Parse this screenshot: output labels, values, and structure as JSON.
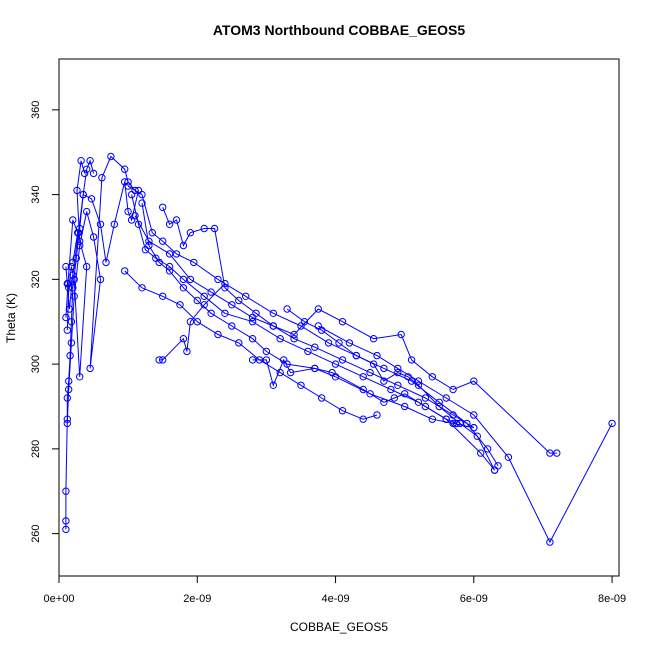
{
  "chart_data": {
    "type": "line",
    "title": "ATOM3 Northbound COBBAE_GEOS5",
    "xlabel": "COBBAE_GEOS5",
    "ylabel": "Theta (K)",
    "xlim": [
      0,
      8.1e-09
    ],
    "ylim": [
      250,
      372
    ],
    "x_ticks": [
      {
        "value": 0,
        "label": "0e+00"
      },
      {
        "value": 2e-09,
        "label": "2e-09"
      },
      {
        "value": 4e-09,
        "label": "4e-09"
      },
      {
        "value": 6e-09,
        "label": "6e-09"
      },
      {
        "value": 8e-09,
        "label": "8e-09"
      }
    ],
    "y_ticks": [
      {
        "value": 260,
        "label": "260"
      },
      {
        "value": 280,
        "label": "280"
      },
      {
        "value": 300,
        "label": "300"
      },
      {
        "value": 320,
        "label": "320"
      },
      {
        "value": 340,
        "label": "340"
      },
      {
        "value": 360,
        "label": "360"
      }
    ],
    "grid": false,
    "series": [
      {
        "color": "#0000ff",
        "marker": "open-circle",
        "segments": [
          [
            [
              1e-10,
              261
            ],
            [
              1e-10,
              263
            ],
            [
              1e-10,
              270
            ],
            [
              1.2e-10,
              287
            ],
            [
              1.2e-10,
              292
            ],
            [
              1.4e-10,
              296
            ],
            [
              1.6e-10,
              302
            ],
            [
              1.8e-10,
              310
            ],
            [
              2e-10,
              318
            ],
            [
              2.5e-10,
              325
            ],
            [
              3e-10,
              332
            ],
            [
              3.5e-10,
              340
            ],
            [
              4e-10,
              346
            ],
            [
              4.5e-10,
              348
            ],
            [
              5e-10,
              345
            ]
          ],
          [
            [
              1.2e-10,
              286
            ],
            [
              1.4e-10,
              294
            ],
            [
              1.8e-10,
              305
            ],
            [
              2.2e-10,
              316
            ],
            [
              3e-10,
              328
            ],
            [
              4e-10,
              336
            ],
            [
              5e-10,
              330
            ],
            [
              6e-10,
              320
            ],
            [
              4.5e-10,
              299
            ],
            [
              6.2e-10,
              344
            ],
            [
              7.5e-10,
              349
            ],
            [
              9.5e-10,
              346
            ],
            [
              1e-09,
              343
            ],
            [
              1.1e-09,
              341
            ]
          ],
          [
            [
              1e-10,
              323
            ],
            [
              1.2e-10,
              319
            ],
            [
              1.5e-10,
              313
            ],
            [
              2e-10,
              321
            ],
            [
              2.8e-10,
              331
            ],
            [
              3.5e-10,
              340
            ],
            [
              4.7e-10,
              339
            ],
            [
              6e-10,
              333
            ],
            [
              6.8e-10,
              324
            ],
            [
              8e-10,
              333
            ],
            [
              9.5e-10,
              343
            ],
            [
              1e-09,
              336
            ],
            [
              1.05e-09,
              334
            ],
            [
              1.15e-09,
              341
            ]
          ],
          [
            [
              1.2e-10,
              308
            ],
            [
              1.4e-10,
              318
            ],
            [
              1.8e-10,
              323
            ],
            [
              2.2e-10,
              320
            ],
            [
              3e-10,
              297
            ],
            [
              4e-10,
              323
            ],
            [
              3e-10,
              329
            ],
            [
              2.6e-10,
              341
            ],
            [
              3.2e-10,
              348
            ],
            [
              3.7e-10,
              345
            ]
          ],
          [
            [
              1e-10,
              311
            ],
            [
              1.3e-10,
              319
            ],
            [
              2e-10,
              334
            ],
            [
              2.7e-10,
              331
            ],
            [
              2e-10,
              324
            ]
          ],
          [
            [
              1.2e-09,
              338
            ],
            [
              1.3e-09,
              328
            ],
            [
              1.45e-09,
              324
            ],
            [
              1.6e-09,
              322
            ],
            [
              1.8e-09,
              318
            ],
            [
              2e-09,
              315
            ],
            [
              2.2e-09,
              312
            ],
            [
              2.5e-09,
              309
            ],
            [
              2.8e-09,
              306
            ],
            [
              3e-09,
              303
            ],
            [
              3.3e-09,
              300
            ],
            [
              3.7e-09,
              299
            ],
            [
              4e-09,
              297
            ],
            [
              4.5e-09,
              293
            ],
            [
              5e-09,
              290
            ],
            [
              5.4e-09,
              287
            ],
            [
              5.7e-09,
              286
            ],
            [
              6e-09,
              285
            ]
          ],
          [
            [
              1.05e-09,
              340
            ],
            [
              1.15e-09,
              333
            ],
            [
              1.25e-09,
              327
            ],
            [
              1.4e-09,
              325
            ],
            [
              1.6e-09,
              323
            ],
            [
              1.8e-09,
              320
            ],
            [
              2.1e-09,
              316
            ],
            [
              2.4e-09,
              312
            ],
            [
              2.8e-09,
              310
            ],
            [
              3.2e-09,
              306
            ],
            [
              3.6e-09,
              303
            ],
            [
              4e-09,
              300
            ],
            [
              4.4e-09,
              297
            ],
            [
              4.8e-09,
              294
            ],
            [
              5.2e-09,
              291
            ],
            [
              5.6e-09,
              287
            ],
            [
              6.1e-09,
              279
            ],
            [
              6.3e-09,
              275
            ]
          ],
          [
            [
              9.5e-10,
              322
            ],
            [
              1.2e-09,
              318
            ],
            [
              1.5e-09,
              316
            ],
            [
              1.75e-09,
              314
            ],
            [
              2e-09,
              310
            ],
            [
              2.3e-09,
              307
            ],
            [
              2.6e-09,
              305
            ],
            [
              2.9e-09,
              301
            ],
            [
              3.2e-09,
              298
            ],
            [
              3.5e-09,
              295
            ],
            [
              3.8e-09,
              292
            ],
            [
              4.1e-09,
              289
            ],
            [
              4.4e-09,
              287
            ],
            [
              4.6e-09,
              288
            ]
          ],
          [
            [
              1.1e-09,
              335
            ],
            [
              1.3e-09,
              329
            ],
            [
              1.6e-09,
              326
            ],
            [
              1.9e-09,
              320
            ],
            [
              2.2e-09,
              317
            ],
            [
              2.5e-09,
              314
            ],
            [
              2.8e-09,
              311
            ],
            [
              3.1e-09,
              309
            ],
            [
              3.4e-09,
              306
            ],
            [
              3.7e-09,
              304
            ],
            [
              4.1e-09,
              301
            ],
            [
              4.5e-09,
              298
            ],
            [
              4.9e-09,
              295
            ],
            [
              5.3e-09,
              292
            ],
            [
              5.7e-09,
              288
            ],
            [
              6e-09,
              285
            ]
          ],
          [
            [
              1e-09,
              342
            ],
            [
              1.2e-09,
              340
            ],
            [
              1.35e-09,
              331
            ],
            [
              1.5e-09,
              329
            ],
            [
              1.7e-09,
              326
            ],
            [
              1.95e-09,
              324
            ],
            [
              2.3e-09,
              320
            ],
            [
              2.7e-09,
              316
            ],
            [
              3.1e-09,
              312
            ],
            [
              3.5e-09,
              309
            ],
            [
              3.9e-09,
              305
            ],
            [
              4.3e-09,
              302
            ],
            [
              4.7e-09,
              299
            ],
            [
              5.1e-09,
              296
            ],
            [
              5.5e-09,
              291
            ],
            [
              5.9e-09,
              286
            ],
            [
              6.2e-09,
              280
            ],
            [
              6.35e-09,
              276
            ]
          ],
          [
            [
              1.45e-09,
              301
            ],
            [
              1.5e-09,
              301
            ],
            [
              1.8e-09,
              306
            ],
            [
              1.85e-09,
              303
            ],
            [
              1.9e-09,
              310
            ],
            [
              2.1e-09,
              314
            ],
            [
              2.4e-09,
              319
            ]
          ],
          [
            [
              1.5e-09,
              337
            ],
            [
              1.6e-09,
              333
            ],
            [
              1.7e-09,
              334
            ],
            [
              1.8e-09,
              328
            ],
            [
              1.9e-09,
              331
            ],
            [
              2.1e-09,
              332
            ],
            [
              2.25e-09,
              332
            ],
            [
              2.4e-09,
              318
            ],
            [
              2.6e-09,
              315
            ],
            [
              2.85e-09,
              312
            ],
            [
              3.1e-09,
              309
            ],
            [
              3.4e-09,
              307
            ],
            [
              3.75e-09,
              313
            ],
            [
              4.1e-09,
              310
            ],
            [
              4.55e-09,
              306
            ],
            [
              4.95e-09,
              307
            ],
            [
              5.1e-09,
              301
            ],
            [
              5.4e-09,
              297
            ],
            [
              5.7e-09,
              294
            ],
            [
              6e-09,
              296
            ],
            [
              7.1e-09,
              279
            ],
            [
              7.2e-09,
              279
            ]
          ],
          [
            [
              3.75e-09,
              309
            ],
            [
              4.2e-09,
              305
            ],
            [
              4.6e-09,
              302
            ],
            [
              4.9e-09,
              299
            ],
            [
              5.2e-09,
              296
            ],
            [
              5.6e-09,
              292
            ],
            [
              6e-09,
              288
            ],
            [
              6.5e-09,
              278
            ],
            [
              7.1e-09,
              258
            ],
            [
              8e-09,
              286
            ]
          ],
          [
            [
              2.8e-09,
              301
            ],
            [
              3e-09,
              301
            ],
            [
              3.1e-09,
              295
            ],
            [
              3.25e-09,
              301
            ],
            [
              3.35e-09,
              298
            ],
            [
              3.7e-09,
              299
            ],
            [
              3.95e-09,
              298
            ],
            [
              4.4e-09,
              294
            ],
            [
              4.7e-09,
              291
            ],
            [
              4.85e-09,
              292
            ],
            [
              5e-09,
              293
            ],
            [
              5.3e-09,
              290
            ],
            [
              5.6e-09,
              287
            ],
            [
              5.75e-09,
              286
            ]
          ],
          [
            [
              3.3e-09,
              313
            ],
            [
              3.55e-09,
              310
            ],
            [
              3.8e-09,
              308
            ],
            [
              4.05e-09,
              305
            ],
            [
              4.3e-09,
              302
            ],
            [
              4.55e-09,
              300
            ],
            [
              4.7e-09,
              296
            ],
            [
              4.9e-09,
              298
            ],
            [
              5.05e-09,
              297
            ],
            [
              5.2e-09,
              295
            ],
            [
              5.5e-09,
              290
            ],
            [
              5.8e-09,
              286
            ],
            [
              6.05e-09,
              283
            ],
            [
              6.3e-09,
              275
            ]
          ]
        ]
      }
    ]
  }
}
